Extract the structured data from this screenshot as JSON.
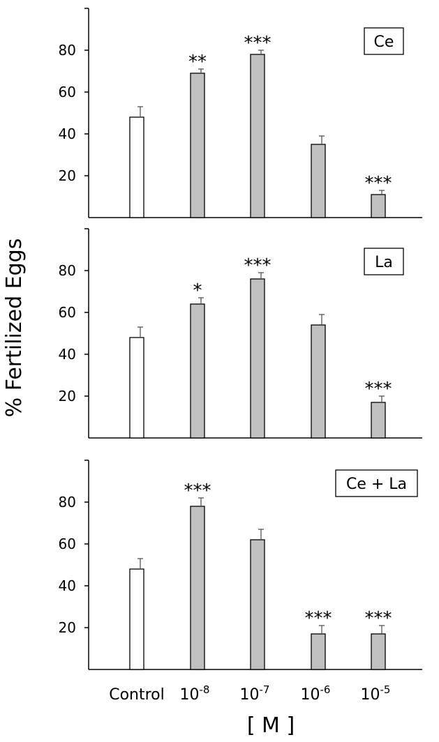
{
  "chart_data": {
    "type": "bar",
    "ylabel": "% Fertilized Eggs",
    "xlabel": "[ M ]",
    "ylim": [
      0,
      100
    ],
    "yticks": [
      20,
      40,
      60,
      80
    ],
    "categories": [
      {
        "base": "Control",
        "exp": ""
      },
      {
        "base": "10",
        "exp": "-8"
      },
      {
        "base": "10",
        "exp": "-7"
      },
      {
        "base": "10",
        "exp": "-6"
      },
      {
        "base": "10",
        "exp": "-5"
      }
    ],
    "control_color": "#ffffff",
    "treatment_color": "#c0c0c0",
    "panels": [
      {
        "label": "Ce",
        "values": [
          48,
          69,
          78,
          35,
          11
        ],
        "errors": [
          5,
          2,
          2,
          4,
          2
        ],
        "significance": [
          "",
          "**",
          "***",
          "",
          "***"
        ]
      },
      {
        "label": "La",
        "values": [
          48,
          64,
          76,
          54,
          17
        ],
        "errors": [
          5,
          3,
          3,
          5,
          3
        ],
        "significance": [
          "",
          "*",
          "***",
          "",
          "***"
        ]
      },
      {
        "label": "Ce + La",
        "values": [
          48,
          78,
          62,
          17,
          17
        ],
        "errors": [
          5,
          4,
          5,
          4,
          4
        ],
        "significance": [
          "",
          "***",
          "",
          "***",
          "***"
        ]
      }
    ]
  }
}
